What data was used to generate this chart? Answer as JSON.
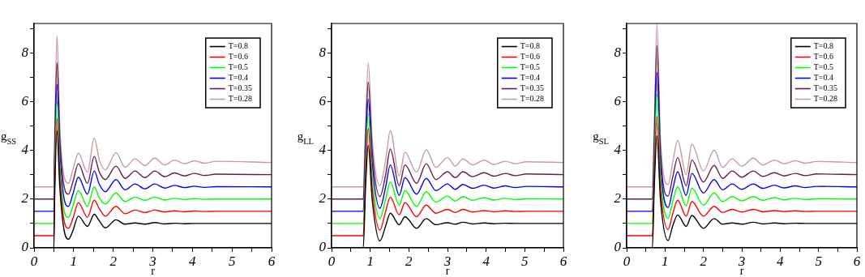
{
  "chart_data": [
    {
      "type": "line",
      "xlabel": "r",
      "ylabel": "g$_{SS}$",
      "legend": "top right",
      "xlim": [
        0,
        6
      ],
      "ylim": [
        0,
        9.2
      ],
      "xticks": [
        0,
        {
          "value": 0.5,
          "label": null
        },
        1,
        {
          "value": 1.5,
          "label": null
        },
        2,
        {
          "value": 2.5,
          "label": null
        },
        3,
        {
          "value": 3.5,
          "label": null
        },
        4,
        {
          "value": 4.5,
          "label": null
        },
        5,
        {
          "value": 5.5,
          "label": null
        },
        6
      ],
      "yticks": [
        0,
        {
          "value": 1,
          "label": null
        },
        2,
        {
          "value": 3,
          "label": null
        },
        4,
        {
          "value": 5,
          "label": null
        },
        6,
        {
          "value": 7,
          "label": null
        },
        8,
        {
          "value": 9,
          "label": null
        }
      ],
      "x": [
        0,
        0.5,
        0.52,
        0.58,
        0.65,
        0.75,
        0.87,
        0.98,
        1.12,
        1.35,
        1.52,
        1.65,
        1.8,
        2.07,
        2.3,
        2.55,
        2.8,
        3.05,
        3.3,
        3.55,
        3.8,
        4.05,
        4.3,
        4.6,
        6
      ],
      "series": [
        {
          "name": "T=0.8",
          "color": "#000000",
          "values": [
            0,
            0,
            2,
            4.8,
            2.5,
            0.8,
            0.35,
            0.7,
            1.3,
            0.88,
            1.38,
            1.1,
            0.82,
            1.15,
            0.97,
            1.02,
            0.97,
            1.04,
            0.98,
            1.01,
            0.99,
            1,
            1,
            1,
            1
          ]
        },
        {
          "name": "T=0.6",
          "color": "#ff0000",
          "values": [
            0.5,
            0.5,
            2.5,
            5.3,
            3,
            1.2,
            0.8,
            1.2,
            1.85,
            1.25,
            1.95,
            1.6,
            1.3,
            1.7,
            1.4,
            1.55,
            1.45,
            1.55,
            1.47,
            1.52,
            1.48,
            1.51,
            1.49,
            1.5,
            1.5
          ]
        },
        {
          "name": "T=0.5",
          "color": "#00ff00",
          "values": [
            1,
            1,
            3,
            6,
            3.5,
            1.6,
            1.25,
            1.7,
            2.35,
            1.7,
            2.5,
            2.05,
            1.8,
            2.25,
            1.9,
            2.08,
            1.95,
            2.08,
            1.96,
            2.03,
            1.98,
            2.02,
            1.99,
            2,
            2
          ]
        },
        {
          "name": "T=0.4",
          "color": "#0000ff",
          "values": [
            1.5,
            1.5,
            3.5,
            6.7,
            4,
            2.1,
            1.7,
            2.2,
            2.9,
            2.2,
            3.15,
            2.6,
            2.3,
            2.8,
            2.38,
            2.62,
            2.42,
            2.62,
            2.45,
            2.56,
            2.47,
            2.53,
            2.48,
            2.51,
            2.5
          ]
        },
        {
          "name": "T=0.35",
          "color": "#661a4d",
          "values": [
            2,
            2,
            4,
            7.6,
            4.5,
            2.6,
            2.2,
            2.7,
            3.45,
            2.65,
            3.75,
            3.1,
            2.8,
            3.35,
            2.85,
            3.15,
            2.88,
            3.15,
            2.92,
            3.07,
            2.95,
            3.05,
            2.97,
            3.02,
            3
          ]
        },
        {
          "name": "T=0.28",
          "color": "#c89c9c",
          "values": [
            2.5,
            2.5,
            4.5,
            8.7,
            5,
            3,
            2.65,
            3.2,
            3.88,
            3.1,
            4.5,
            3.6,
            3.2,
            3.9,
            3.3,
            3.65,
            3.38,
            3.68,
            3.4,
            3.6,
            3.45,
            3.57,
            3.47,
            3.55,
            3.5
          ]
        }
      ]
    },
    {
      "type": "line",
      "xlabel": "r",
      "ylabel": "g$_{LL}$",
      "legend": "top right",
      "xlim": [
        0,
        6
      ],
      "ylim": [
        0,
        9.2
      ],
      "xticks": [
        0,
        {
          "value": 0.5,
          "label": null
        },
        1,
        {
          "value": 1.5,
          "label": null
        },
        2,
        {
          "value": 2.5,
          "label": null
        },
        3,
        {
          "value": 3.5,
          "label": null
        },
        4,
        {
          "value": 4.5,
          "label": null
        },
        5,
        {
          "value": 5.5,
          "label": null
        },
        6
      ],
      "yticks": [
        0,
        {
          "value": 1,
          "label": null
        },
        2,
        {
          "value": 3,
          "label": null
        },
        4,
        {
          "value": 5,
          "label": null
        },
        6,
        {
          "value": 7,
          "label": null
        },
        8,
        {
          "value": 9,
          "label": null
        }
      ],
      "x": [
        0,
        0.82,
        0.88,
        0.95,
        1.05,
        1.25,
        1.4,
        1.52,
        1.75,
        1.9,
        2.2,
        2.45,
        2.7,
        3.0,
        3.2,
        3.4,
        3.65,
        3.95,
        4.2,
        4.5,
        4.75,
        5.05,
        6
      ],
      "series": [
        {
          "name": "T=0.8",
          "color": "#000000",
          "values": [
            0,
            0,
            2.5,
            4.2,
            2,
            0.28,
            0.9,
            1.42,
            0.95,
            1.28,
            0.8,
            1.2,
            0.95,
            1.03,
            0.97,
            1.05,
            0.98,
            1.02,
            0.99,
            1.01,
            1,
            1,
            1
          ]
        },
        {
          "name": "T=0.6",
          "color": "#ff0000",
          "values": [
            0.5,
            0.5,
            3,
            4.9,
            2.5,
            0.72,
            1.5,
            2.08,
            1.35,
            1.85,
            1.28,
            1.75,
            1.42,
            1.58,
            1.45,
            1.58,
            1.47,
            1.53,
            1.48,
            1.52,
            1.49,
            1.5,
            1.5
          ]
        },
        {
          "name": "T=0.5",
          "color": "#00ff00",
          "values": [
            1,
            1,
            3.5,
            5.5,
            3,
            1.2,
            2,
            2.7,
            1.75,
            2.35,
            1.7,
            2.3,
            1.88,
            2.12,
            1.92,
            2.1,
            1.95,
            2.06,
            1.96,
            2.03,
            1.98,
            2.01,
            2
          ]
        },
        {
          "name": "T=0.4",
          "color": "#0000ff",
          "values": [
            1.5,
            1.5,
            4,
            6.1,
            3.5,
            1.62,
            2.5,
            3.4,
            2.15,
            2.88,
            2.2,
            2.85,
            2.35,
            2.62,
            2.4,
            2.6,
            2.44,
            2.57,
            2.45,
            2.54,
            2.47,
            2.52,
            2.5
          ]
        },
        {
          "name": "T=0.35",
          "color": "#661a4d",
          "values": [
            2,
            2,
            4.5,
            6.8,
            4,
            2.1,
            3,
            4.05,
            2.55,
            3.4,
            2.65,
            3.45,
            2.8,
            3.12,
            2.88,
            3.12,
            2.92,
            3.08,
            2.94,
            3.05,
            2.96,
            3.03,
            3
          ]
        },
        {
          "name": "T=0.28",
          "color": "#c89c9c",
          "values": [
            2.5,
            2.5,
            5,
            7.6,
            4.5,
            2.55,
            3.6,
            4.8,
            2.95,
            3.92,
            3.1,
            4.02,
            3.3,
            3.7,
            3.35,
            3.65,
            3.4,
            3.6,
            3.42,
            3.55,
            3.45,
            3.53,
            3.5
          ]
        }
      ]
    },
    {
      "type": "line",
      "xlabel": "r",
      "ylabel": "g$_{SL}$",
      "legend": "top right",
      "xlim": [
        0,
        6
      ],
      "ylim": [
        0,
        9.2
      ],
      "xticks": [
        0,
        {
          "value": 0.5,
          "label": null
        },
        1,
        {
          "value": 1.5,
          "label": null
        },
        2,
        {
          "value": 2.5,
          "label": null
        },
        3,
        {
          "value": 3.5,
          "label": null
        },
        4,
        {
          "value": 4.5,
          "label": null
        },
        5,
        {
          "value": 5.5,
          "label": null
        },
        6
      ],
      "yticks": [
        0,
        {
          "value": 1,
          "label": null
        },
        2,
        {
          "value": 3,
          "label": null
        },
        4,
        {
          "value": 5,
          "label": null
        },
        6,
        {
          "value": 7,
          "label": null
        },
        8,
        {
          "value": 9,
          "label": null
        }
      ],
      "x": [
        0,
        0.67,
        0.72,
        0.79,
        0.88,
        1.08,
        1.2,
        1.33,
        1.55,
        1.7,
        2.0,
        2.28,
        2.5,
        2.75,
        3.0,
        3.3,
        3.55,
        3.85,
        4.1,
        4.4,
        4.65,
        4.95,
        6
      ],
      "series": [
        {
          "name": "T=0.8",
          "color": "#000000",
          "values": [
            0,
            0,
            2.5,
            4.6,
            2,
            0.3,
            0.9,
            1.35,
            0.88,
            1.33,
            0.8,
            1.2,
            0.97,
            1.02,
            0.97,
            1.05,
            0.98,
            1.02,
            0.99,
            1.01,
            1,
            1,
            1
          ]
        },
        {
          "name": "T=0.6",
          "color": "#ff0000",
          "values": [
            0.5,
            0.5,
            3,
            5.4,
            2.5,
            0.75,
            1.4,
            1.95,
            1.3,
            1.9,
            1.3,
            1.7,
            1.45,
            1.58,
            1.47,
            1.58,
            1.48,
            1.53,
            1.49,
            1.52,
            1.49,
            1.5,
            1.5
          ]
        },
        {
          "name": "T=0.5",
          "color": "#00ff00",
          "values": [
            1,
            1,
            3.5,
            6.3,
            3,
            1.2,
            1.9,
            2.5,
            1.72,
            2.45,
            1.75,
            2.25,
            1.9,
            2.1,
            1.93,
            2.1,
            1.95,
            2.06,
            1.97,
            2.03,
            1.98,
            2.01,
            2
          ]
        },
        {
          "name": "T=0.4",
          "color": "#0000ff",
          "values": [
            1.5,
            1.5,
            4,
            7.2,
            3.5,
            1.65,
            2.4,
            3.12,
            2.15,
            3.05,
            2.25,
            2.8,
            2.38,
            2.62,
            2.4,
            2.62,
            2.44,
            2.57,
            2.46,
            2.54,
            2.47,
            2.52,
            2.5
          ]
        },
        {
          "name": "T=0.35",
          "color": "#661a4d",
          "values": [
            2,
            2,
            4.5,
            8.3,
            4,
            2.12,
            2.9,
            3.7,
            2.55,
            3.6,
            2.7,
            3.38,
            2.85,
            3.15,
            2.9,
            3.15,
            2.93,
            3.08,
            2.95,
            3.05,
            2.96,
            3.03,
            3
          ]
        },
        {
          "name": "T=0.28",
          "color": "#c89c9c",
          "values": [
            2.5,
            2.5,
            5,
            9.2,
            4.5,
            2.6,
            3.5,
            4.4,
            3.0,
            4.25,
            3.15,
            4.0,
            3.3,
            3.65,
            3.35,
            3.68,
            3.4,
            3.6,
            3.45,
            3.57,
            3.47,
            3.54,
            3.5
          ]
        }
      ]
    }
  ]
}
